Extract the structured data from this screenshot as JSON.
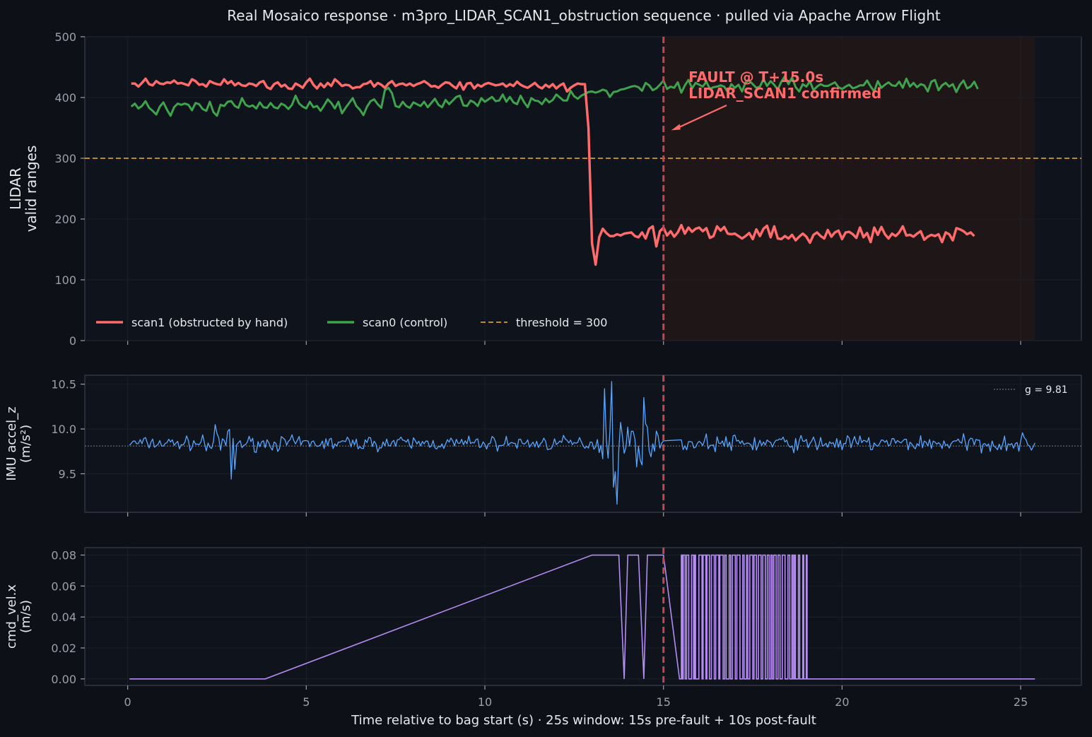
{
  "title": "Real Mosaico response  ·  m3pro_LIDAR_SCAN1_obstruction sequence  ·  pulled via Apache Arrow Flight",
  "xlabel": "Time relative to bag start (s)  ·  25s window: 15s pre-fault + 10s post-fault",
  "colors": {
    "background": "#0d1017",
    "scan1": "#ff6b6b",
    "scan0": "#3fa34d",
    "threshold": "#d39b2a",
    "imu": "#58a6ff",
    "cmd": "#b48cf2",
    "fault_line": "#c0474f",
    "fault_shade": "#1f1618"
  },
  "chart_data": [
    {
      "type": "line",
      "ylabel": [
        "LIDAR",
        "valid ranges"
      ],
      "xlim": [
        -1.2,
        26.7
      ],
      "ylim": [
        0,
        500
      ],
      "xticks": [
        0,
        5,
        10,
        15,
        20,
        25
      ],
      "yticks": [
        0,
        100,
        200,
        300,
        400,
        500
      ],
      "threshold": 300,
      "fault_time": 15.0,
      "fault_region": [
        15.0,
        25.4
      ],
      "annotation": [
        "FAULT @ T+15.0s",
        "LIDAR_SCAN1 confirmed"
      ],
      "annotation_target": [
        15.1,
        360
      ],
      "legend": [
        {
          "label": "scan1 (obstructed by hand)",
          "style": "solid",
          "series": "scan1"
        },
        {
          "label": "scan0 (control)",
          "style": "solid",
          "series": "scan0"
        },
        {
          "label": "threshold = 300",
          "style": "dashed",
          "series": "threshold"
        }
      ],
      "series": [
        {
          "name": "scan1 (obstructed by hand)",
          "x_start": 0.1,
          "x_step": 0.1,
          "values": [
            423,
            423,
            418,
            424,
            431,
            422,
            420,
            427,
            423,
            422,
            425,
            424,
            428,
            423,
            424,
            422,
            420,
            430,
            427,
            421,
            422,
            418,
            427,
            424,
            422,
            421,
            430,
            423,
            427,
            420,
            424,
            420,
            419,
            423,
            422,
            419,
            425,
            427,
            417,
            414,
            422,
            425,
            418,
            421,
            415,
            414,
            423,
            420,
            416,
            425,
            431,
            421,
            415,
            423,
            417,
            424,
            419,
            430,
            425,
            419,
            421,
            420,
            415,
            417,
            417,
            422,
            423,
            427,
            418,
            424,
            421,
            416,
            423,
            427,
            419,
            422,
            423,
            420,
            423,
            419,
            422,
            424,
            427,
            423,
            418,
            419,
            416,
            421,
            425,
            424,
            419,
            415,
            425,
            413,
            423,
            424,
            415,
            421,
            418,
            422,
            424,
            422,
            420,
            421,
            423,
            418,
            422,
            419,
            426,
            421,
            418,
            416,
            420,
            424,
            418,
            415,
            421,
            417,
            422,
            415,
            420,
            423,
            410,
            416,
            420,
            423,
            422,
            422,
            350,
            160,
            125,
            170,
            184,
            177,
            172,
            172,
            175,
            173,
            176,
            177,
            178,
            172,
            170,
            178,
            168,
            184,
            188,
            155,
            180,
            186,
            173,
            180,
            171,
            178,
            190,
            176,
            186,
            179,
            184,
            186,
            180,
            185,
            169,
            172,
            188,
            181,
            187,
            176,
            175,
            176,
            172,
            168,
            172,
            177,
            167,
            183,
            172,
            184,
            189,
            170,
            188,
            168,
            167,
            172,
            168,
            174,
            165,
            171,
            176,
            171,
            161,
            174,
            178,
            172,
            168,
            182,
            171,
            178,
            181,
            167,
            178,
            179,
            175,
            169,
            186,
            170,
            177,
            162,
            186,
            174,
            187,
            175,
            168,
            176,
            172,
            178,
            188,
            173,
            174,
            171,
            176,
            180,
            166,
            171,
            174,
            172,
            175,
            162,
            178,
            175,
            165,
            185,
            183,
            180,
            175,
            178,
            172
          ]
        },
        {
          "name": "scan0 (control)",
          "x_start": 0.1,
          "x_step": 0.1,
          "values": [
            385,
            390,
            382,
            386,
            394,
            383,
            378,
            372,
            385,
            392,
            380,
            370,
            384,
            390,
            388,
            390,
            388,
            379,
            391,
            389,
            381,
            378,
            393,
            376,
            370,
            388,
            386,
            393,
            394,
            386,
            383,
            399,
            388,
            385,
            387,
            382,
            392,
            384,
            383,
            391,
            384,
            382,
            390,
            387,
            381,
            388,
            403,
            390,
            385,
            382,
            393,
            384,
            386,
            378,
            387,
            397,
            391,
            382,
            393,
            374,
            383,
            391,
            399,
            386,
            380,
            371,
            385,
            394,
            397,
            389,
            383,
            412,
            416,
            407,
            386,
            384,
            393,
            386,
            383,
            392,
            389,
            386,
            393,
            384,
            391,
            398,
            388,
            384,
            396,
            389,
            395,
            401,
            403,
            387,
            386,
            395,
            392,
            386,
            399,
            393,
            397,
            401,
            394,
            395,
            405,
            393,
            401,
            392,
            389,
            403,
            392,
            384,
            399,
            395,
            394,
            389,
            398,
            392,
            396,
            405,
            400,
            395,
            395,
            411,
            402,
            398,
            403,
            406,
            409,
            410,
            408,
            410,
            413,
            411,
            401,
            409,
            410,
            413,
            414,
            416,
            418,
            419,
            417,
            411,
            424,
            420,
            412,
            415,
            421,
            428,
            414,
            418,
            416,
            425,
            408,
            420,
            429,
            415,
            424,
            421,
            418,
            426,
            414,
            417,
            418,
            420,
            418,
            409,
            422,
            416,
            421,
            410,
            425,
            428,
            422,
            416,
            418,
            430,
            419,
            427,
            421,
            413,
            426,
            435,
            422,
            433,
            417,
            410,
            422,
            418,
            427,
            412,
            418,
            422,
            419,
            419,
            422,
            425,
            417,
            414,
            418,
            421,
            415,
            417,
            420,
            420,
            428,
            418,
            410,
            427,
            416,
            421,
            425,
            420,
            419,
            426,
            416,
            431,
            418,
            424,
            417,
            422,
            420,
            410,
            426,
            429,
            412,
            420,
            424,
            418,
            422,
            409,
            421,
            428,
            415,
            418,
            426,
            414
          ]
        },
        {
          "name": "threshold = 300",
          "values": [
            300
          ]
        }
      ]
    },
    {
      "type": "line",
      "ylabel": [
        "IMU accel_z",
        "(m/s²)"
      ],
      "xlim": [
        -1.2,
        26.7
      ],
      "ylim": [
        9.07,
        10.6
      ],
      "yticks": [
        9.5,
        10.0,
        10.5
      ],
      "reference": 9.81,
      "legend": [
        {
          "label": "g = 9.81",
          "style": "dotted"
        }
      ],
      "series": [
        {
          "name": "IMU accel_z",
          "noise_seed": 7,
          "t_start": 0.05,
          "t_end": 25.4,
          "dt": 0.05,
          "baseline": 9.84,
          "gap": [
            15.05,
            15.5
          ],
          "segments": [
            {
              "from": 0.05,
              "to": 2.0,
              "amp": 0.055
            },
            {
              "from": 2.0,
              "to": 3.0,
              "amp": 0.13
            },
            {
              "from": 3.0,
              "to": 13.2,
              "amp": 0.06
            },
            {
              "from": 13.2,
              "to": 14.6,
              "amp": 0.22
            },
            {
              "from": 14.6,
              "to": 15.05,
              "amp": 0.09
            },
            {
              "from": 15.5,
              "to": 25.4,
              "amp": 0.07
            }
          ],
          "spikes": [
            [
              13.55,
              10.53
            ],
            [
              13.6,
              9.35
            ],
            [
              13.72,
              9.16
            ],
            [
              13.35,
              10.45
            ],
            [
              14.45,
              10.35
            ],
            [
              2.9,
              9.44
            ],
            [
              3.0,
              9.55
            ]
          ]
        }
      ]
    },
    {
      "type": "line",
      "ylabel": [
        "cmd_vel.x",
        "(m/s)"
      ],
      "xlim": [
        -1.2,
        26.7
      ],
      "ylim": [
        -0.0042,
        0.0848
      ],
      "yticks": [
        0.0,
        0.02,
        0.04,
        0.06,
        0.08
      ],
      "tick_labels": [
        "0.00",
        "0.02",
        "0.04",
        "0.06",
        "0.08"
      ],
      "series": [
        {
          "name": "cmd_vel.x",
          "points": [
            [
              0.05,
              0.0
            ],
            [
              3.85,
              0.0
            ],
            [
              13.0,
              0.08
            ],
            [
              13.75,
              0.08
            ],
            [
              13.9,
              0.0
            ],
            [
              14.0,
              0.08
            ],
            [
              14.3,
              0.08
            ],
            [
              14.45,
              0.0
            ],
            [
              14.55,
              0.08
            ],
            [
              15.0,
              0.08
            ],
            [
              15.45,
              0.0
            ],
            [
              15.5,
              0.0
            ]
          ],
          "toggle_window": [
            15.45,
            19.25
          ],
          "toggle_count": 64,
          "tail": [
            [
              19.25,
              0.0
            ],
            [
              25.4,
              0.0
            ]
          ]
        }
      ]
    }
  ]
}
